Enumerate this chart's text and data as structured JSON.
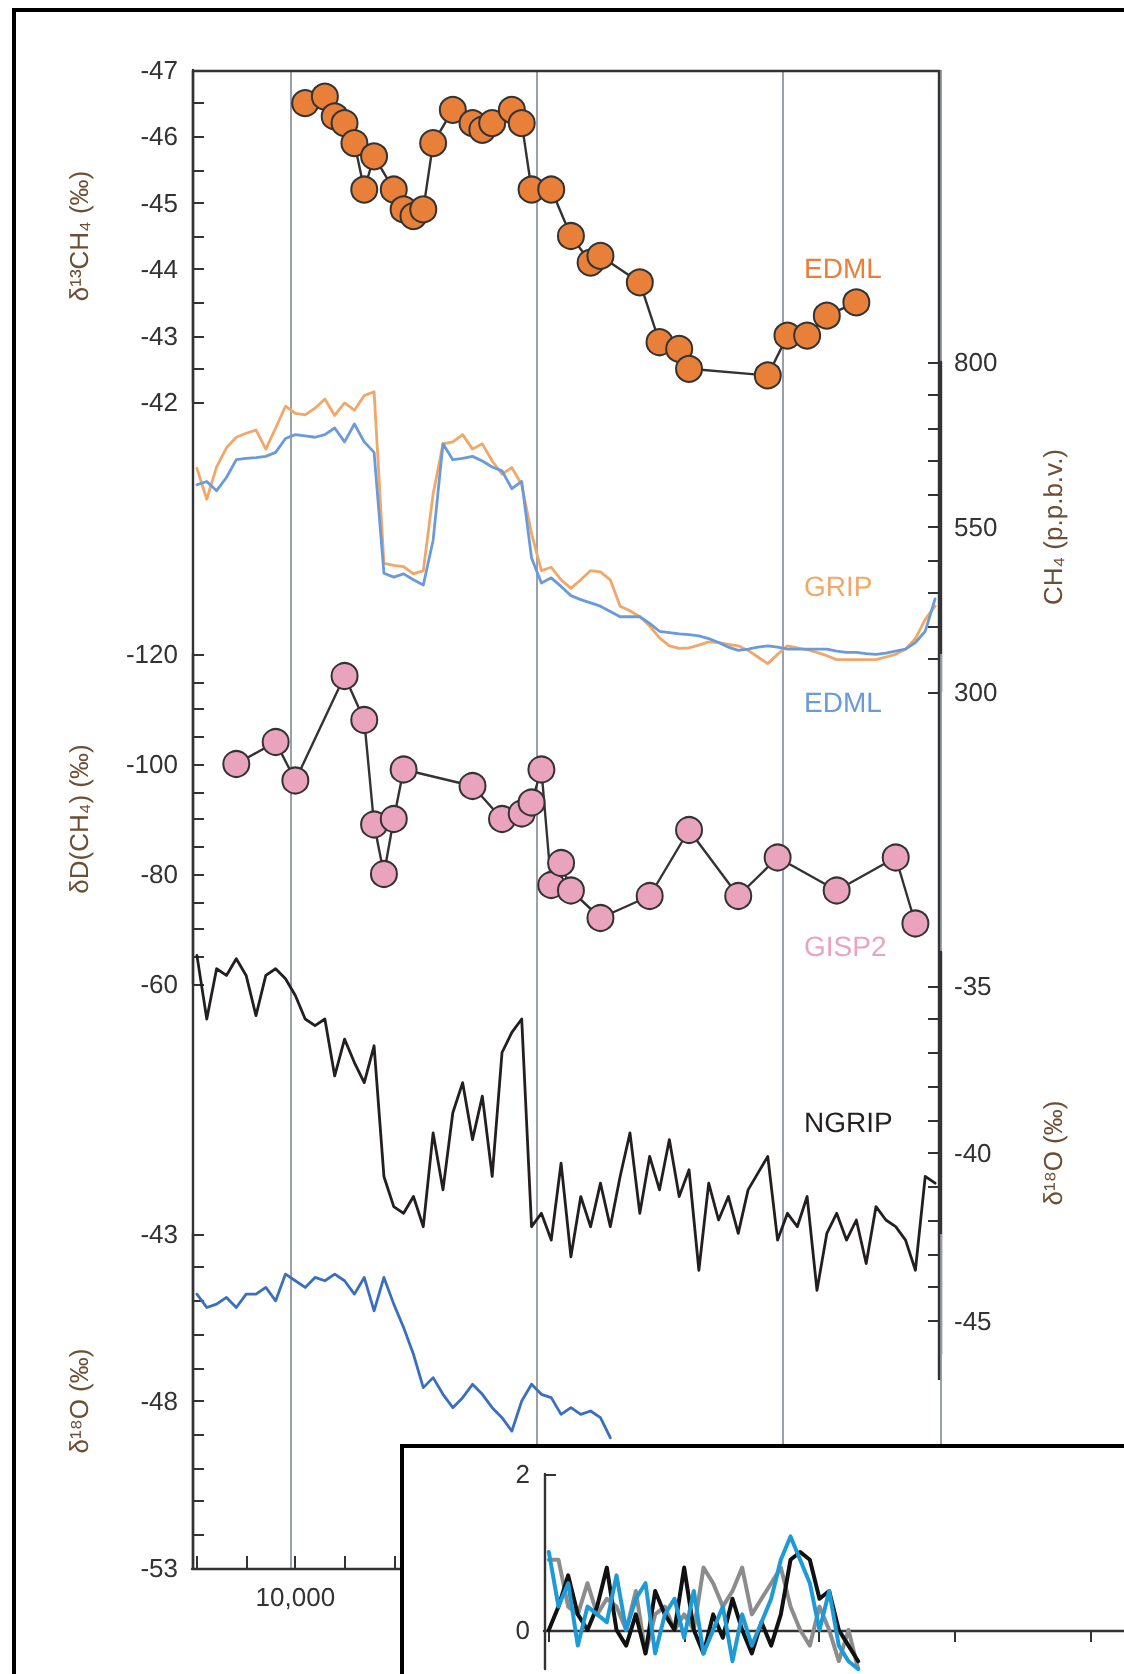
{
  "chart_data": [
    {
      "type": "line",
      "ylabel": "δ¹³CH₄ (‰)",
      "marker": "circle",
      "ylim": [
        -42,
        -47
      ],
      "tick_labels": "y",
      "grid": "x",
      "yticks": [
        -47,
        {
          "value": -46.5,
          "label": null
        },
        -46,
        {
          "value": -45.5,
          "label": null
        },
        -45,
        {
          "value": -44.5,
          "label": null
        },
        -44,
        {
          "value": -43.5,
          "label": null
        },
        -43,
        {
          "value": -42.5,
          "label": null
        },
        -42
      ],
      "categories": [
        null,
        null,
        null,
        null,
        null,
        null,
        null,
        null,
        null,
        null,
        null,
        null,
        null,
        null,
        null,
        null,
        null,
        null,
        null,
        null,
        null,
        null,
        null,
        null,
        null,
        null,
        null,
        null,
        null,
        null,
        null,
        null,
        null,
        null,
        null,
        null,
        null,
        null,
        null,
        null,
        null,
        null,
        null,
        null,
        null,
        null,
        null,
        null,
        null,
        null,
        null,
        null,
        null,
        null,
        null,
        null,
        null,
        null,
        null,
        null,
        null,
        null,
        null,
        null,
        null,
        null,
        null,
        null,
        null,
        null,
        null,
        null,
        null,
        null,
        null,
        null
      ],
      "series": [
        {
          "name": "EDML",
          "color": "#e8803a",
          "values": [
            null,
            null,
            null,
            null,
            null,
            null,
            null,
            null,
            null,
            null,
            null,
            -46.5,
            null,
            -46.6,
            -46.3,
            -46.2,
            -45.9,
            -45.2,
            -45.7,
            null,
            -45.2,
            -44.9,
            -44.8,
            -44.9,
            -45.9,
            null,
            -46.4,
            null,
            -46.2,
            -46.1,
            -46.2,
            null,
            -46.4,
            -46.2,
            -45.2,
            null,
            -45.2,
            null,
            -44.5,
            null,
            -44.1,
            -44.2,
            null,
            null,
            null,
            -43.8,
            null,
            -42.9,
            null,
            -42.8,
            -42.5,
            null,
            null,
            null,
            null,
            null,
            null,
            null,
            -42.4,
            null,
            -43.0,
            null,
            -43.0,
            null,
            -43.3,
            null,
            null,
            -43.5,
            null,
            null,
            null,
            null,
            null,
            null,
            null,
            null
          ]
        }
      ]
    },
    {
      "type": "line",
      "ylabel": "CH₄ (p.p.b.v.)",
      "ylim": [
        300,
        800
      ],
      "tick_labels": "y",
      "grid": "x",
      "yticks": [
        300,
        {
          "value": 350,
          "label": null
        },
        {
          "value": 400,
          "label": null
        },
        {
          "value": 450,
          "label": null
        },
        {
          "value": 500,
          "label": null
        },
        550,
        {
          "value": 600,
          "label": null
        },
        {
          "value": 650,
          "label": null
        },
        {
          "value": 700,
          "label": null
        },
        {
          "value": 750,
          "label": null
        },
        800
      ],
      "categories": [
        null,
        null,
        null,
        null,
        null,
        null,
        null,
        null,
        null,
        null,
        null,
        null,
        null,
        null,
        null,
        null,
        null,
        null,
        null,
        null,
        null,
        null,
        null,
        null,
        null,
        null,
        null,
        null,
        null,
        null,
        null,
        null,
        null,
        null,
        null,
        null,
        null,
        null,
        null,
        null,
        null,
        null,
        null,
        null,
        null,
        null,
        null,
        null,
        null,
        null,
        null,
        null,
        null,
        null,
        null,
        null,
        null,
        null,
        null,
        null,
        null,
        null,
        null,
        null,
        null,
        null,
        null,
        null,
        null,
        null,
        null,
        null,
        null,
        null,
        null,
        null
      ],
      "series": [
        {
          "name": "GRIP",
          "color": "#f0a868",
          "values": [
            639,
            592,
            641,
            670,
            686,
            692,
            697,
            668,
            700,
            733,
            722,
            720,
            730,
            744,
            719,
            738,
            727,
            749,
            755,
            495,
            492,
            490,
            479,
            484,
            600,
            676,
            679,
            690,
            668,
            676,
            650,
            630,
            640,
            614,
            540,
            484,
            489,
            470,
            457,
            470,
            484,
            482,
            470,
            430,
            423,
            414,
            400,
            382,
            370,
            366,
            367,
            371,
            376,
            375,
            372,
            370,
            363,
            353,
            343,
            357,
            370,
            367,
            364,
            360,
            355,
            349,
            349,
            349,
            349,
            349,
            353,
            357,
            365,
            381,
            410,
            430
          ]
        },
        {
          "name": "EDML",
          "color": "#6a9bd8",
          "values": [
            614,
            619,
            605,
            625,
            652,
            654,
            655,
            657,
            663,
            684,
            690,
            688,
            686,
            690,
            700,
            679,
            706,
            679,
            663,
            480,
            474,
            479,
            470,
            462,
            530,
            676,
            652,
            654,
            657,
            650,
            641,
            635,
            608,
            619,
            503,
            465,
            473,
            460,
            446,
            440,
            435,
            430,
            422,
            414,
            414,
            414,
            404,
            392,
            390,
            388,
            387,
            385,
            381,
            375,
            368,
            363,
            365,
            368,
            370,
            368,
            365,
            365,
            365,
            365,
            365,
            362,
            360,
            360,
            358,
            357,
            359,
            362,
            365,
            375,
            392,
            441
          ]
        }
      ]
    },
    {
      "type": "line",
      "ylabel": "δD(CH₄) (‰)",
      "marker": "circle",
      "ylim": [
        -60,
        -120
      ],
      "tick_labels": "y",
      "grid": "x",
      "yticks": [
        -120,
        {
          "value": -115,
          "label": null
        },
        {
          "value": -110,
          "label": null
        },
        {
          "value": -105,
          "label": null
        },
        -100,
        {
          "value": -95,
          "label": null
        },
        {
          "value": -90,
          "label": null
        },
        {
          "value": -85,
          "label": null
        },
        -80,
        {
          "value": -75,
          "label": null
        },
        {
          "value": -70,
          "label": null
        },
        {
          "value": -65,
          "label": null
        },
        -60
      ],
      "categories": [
        null,
        null,
        null,
        null,
        null,
        null,
        null,
        null,
        null,
        null,
        null,
        null,
        null,
        null,
        null,
        null,
        null,
        null,
        null,
        null,
        null,
        null,
        null,
        null,
        null,
        null,
        null,
        null,
        null,
        null,
        null,
        null,
        null,
        null,
        null,
        null,
        null,
        null,
        null,
        null,
        null,
        null,
        null,
        null,
        null,
        null,
        null,
        null,
        null,
        null,
        null,
        null,
        null,
        null,
        null,
        null,
        null,
        null,
        null,
        null,
        null,
        null,
        null,
        null,
        null,
        null,
        null,
        null,
        null,
        null,
        null,
        null,
        null,
        null,
        null,
        null
      ],
      "series": [
        {
          "name": "GISP2",
          "color": "#eaa3bd",
          "values": [
            null,
            null,
            null,
            null,
            -100,
            null,
            null,
            null,
            -104,
            null,
            -97,
            null,
            null,
            null,
            null,
            -116,
            null,
            -108,
            -89,
            -80,
            -90,
            -99,
            null,
            null,
            null,
            null,
            null,
            null,
            -96,
            null,
            null,
            -90,
            null,
            -91,
            -93,
            -99,
            -78,
            -82,
            -77,
            null,
            null,
            -72,
            null,
            null,
            null,
            null,
            -76,
            null,
            null,
            null,
            -88,
            null,
            null,
            null,
            null,
            -76,
            null,
            null,
            null,
            -83,
            null,
            null,
            null,
            null,
            null,
            -77,
            null,
            null,
            null,
            null,
            null,
            -83,
            null,
            -71,
            null,
            null
          ]
        }
      ]
    },
    {
      "type": "line",
      "ylabel": "δ¹⁸O (‰)",
      "ylim": [
        -46,
        -34
      ],
      "tick_labels": "y",
      "grid": "x",
      "yticks": [
        -35,
        {
          "value": -36,
          "label": null
        },
        {
          "value": -37,
          "label": null
        },
        {
          "value": -38,
          "label": null
        },
        {
          "value": -39,
          "label": null
        },
        -40,
        {
          "value": -41,
          "label": null
        },
        {
          "value": -42,
          "label": null
        },
        {
          "value": -43,
          "label": null
        },
        {
          "value": -44,
          "label": null
        },
        -45
      ],
      "categories": [
        null,
        null,
        null,
        null,
        null,
        null,
        null,
        null,
        null,
        null,
        null,
        null,
        null,
        null,
        null,
        null,
        null,
        null,
        null,
        null,
        null,
        null,
        null,
        null,
        null,
        null,
        null,
        null,
        null,
        null,
        null,
        null,
        null,
        null,
        null,
        null,
        null,
        null,
        null,
        null,
        null,
        null,
        null,
        null,
        null,
        null,
        null,
        null,
        null,
        null,
        null,
        null,
        null,
        null,
        null,
        null,
        null,
        null,
        null,
        null,
        null,
        null,
        null,
        null,
        null,
        null,
        null,
        null,
        null,
        null,
        null,
        null,
        null,
        null,
        null,
        null
      ],
      "series": [
        {
          "name": "NGRIP",
          "color": "#231f20",
          "values": [
            -34.1,
            -36.0,
            -34.5,
            -34.7,
            -34.2,
            -34.7,
            -35.9,
            -34.7,
            -34.5,
            -34.8,
            -35.3,
            -36.0,
            -36.2,
            -36.0,
            -37.7,
            -36.6,
            -37.3,
            -37.9,
            -36.8,
            -40.7,
            -41.6,
            -41.8,
            -41.3,
            -42.2,
            -39.4,
            -41.1,
            -38.8,
            -37.9,
            -39.6,
            -38.3,
            -40.7,
            -37.0,
            -36.4,
            -36.0,
            -42.2,
            -41.8,
            -42.6,
            -40.3,
            -43.1,
            -41.3,
            -42.2,
            -40.9,
            -42.2,
            -40.7,
            -39.4,
            -41.8,
            -40.1,
            -41.1,
            -39.6,
            -41.3,
            -40.5,
            -43.5,
            -40.9,
            -42.0,
            -41.3,
            -42.4,
            -41.1,
            -40.6,
            -40.1,
            -42.6,
            -41.8,
            -42.2,
            -41.3,
            -44.1,
            -42.4,
            -41.8,
            -42.6,
            -42.0,
            -43.3,
            -41.6,
            -42.0,
            -42.2,
            -42.6,
            -43.5,
            -40.7,
            -40.9
          ]
        }
      ]
    },
    {
      "type": "line",
      "ylabel": "δ¹⁸O (‰)",
      "ylim": [
        -53,
        -43
      ],
      "grid": "x",
      "yticks": [
        -53,
        {
          "value": -52,
          "label": null
        },
        {
          "value": -51,
          "label": null
        },
        {
          "value": -50,
          "label": null
        },
        {
          "value": -49,
          "label": null
        },
        -48,
        {
          "value": -47,
          "label": null
        },
        {
          "value": -46,
          "label": null
        },
        {
          "value": -45,
          "label": null
        },
        {
          "value": -44,
          "label": null
        },
        -43
      ],
      "categories": [
        null,
        null,
        null,
        null,
        null,
        null,
        null,
        null,
        null,
        null,
        "10,000",
        null,
        null,
        null,
        null,
        null,
        null,
        null,
        null,
        null,
        null,
        null,
        null,
        null,
        null,
        null,
        null,
        null,
        null,
        null,
        null,
        null,
        null,
        null,
        null,
        null,
        null,
        null,
        null,
        null,
        null,
        null,
        null,
        null,
        null,
        null,
        null,
        null,
        null,
        null,
        null,
        null,
        null,
        null,
        null,
        null,
        null,
        null,
        null,
        null,
        null,
        null,
        null,
        null,
        null,
        null,
        null,
        null,
        null,
        null,
        null,
        null,
        null,
        null,
        null,
        null
      ],
      "series": [
        {
          "color": "#3a6fbf",
          "values": [
            -44.8,
            -45.2,
            -45.1,
            -44.9,
            -45.2,
            -44.8,
            -44.8,
            -44.6,
            -45.0,
            -44.2,
            -44.4,
            -44.6,
            -44.3,
            -44.4,
            -44.2,
            -44.4,
            -44.8,
            -44.3,
            -45.3,
            -44.3,
            -45.1,
            -45.8,
            -46.6,
            -47.6,
            -47.3,
            -47.8,
            -48.2,
            -47.9,
            -47.5,
            -47.8,
            -48.2,
            -48.5,
            -48.9,
            -48.0,
            -47.5,
            -47.8,
            -47.9,
            -48.4,
            -48.2,
            -48.4,
            -48.3,
            -48.5,
            -49.1,
            null,
            null,
            null,
            null,
            null,
            null,
            null,
            null,
            null,
            null,
            null,
            null,
            null,
            null,
            null,
            null,
            null,
            null,
            null,
            null,
            null,
            null,
            null,
            null,
            null,
            null,
            null,
            null,
            null,
            null,
            null,
            null,
            null
          ]
        }
      ]
    },
    {
      "type": "line",
      "ylim": [
        -0.5,
        2
      ],
      "yticks": [
        0,
        2
      ],
      "tick_labels": "y",
      "categories": [
        null,
        null,
        null,
        null,
        null,
        null,
        null,
        null,
        null,
        null,
        null,
        null,
        null,
        null,
        null,
        null,
        null,
        null,
        null,
        null,
        null,
        null,
        null,
        null,
        null,
        null,
        null,
        null,
        null,
        null,
        null,
        null,
        null,
        null,
        null,
        null,
        null,
        null,
        null,
        null,
        null,
        null,
        null,
        null,
        null,
        null,
        null,
        null,
        null,
        null,
        null,
        null,
        null,
        null,
        null,
        null,
        null,
        null,
        null,
        null
      ],
      "series": [
        {
          "color": "#8c8c8c",
          "values": [
            0.9,
            0.9,
            0.3,
            0.2,
            0.6,
            0.2,
            0.4,
            0.3,
            0.0,
            0.5,
            -0.3,
            0.2,
            0.3,
            0.0,
            0.2,
            0.0,
            0.8,
            0.6,
            0.3,
            0.5,
            0.8,
            0.2,
            0.4,
            0.6,
            0.8,
            0.3,
            0.0,
            -0.2,
            0.3,
            0.0,
            -0.4,
            0.0,
            -0.5,
            null,
            null,
            null,
            null,
            null,
            null,
            null,
            null,
            null,
            null,
            null,
            null,
            null,
            null,
            null,
            null,
            null,
            null,
            null,
            null,
            null,
            null,
            null,
            null,
            null,
            null,
            null
          ]
        },
        {
          "color": "#111111",
          "values": [
            0.0,
            0.3,
            0.7,
            0.2,
            0.0,
            0.3,
            0.8,
            0.0,
            -0.2,
            0.2,
            -0.3,
            0.5,
            0.2,
            0.0,
            0.8,
            0.0,
            -0.3,
            0.2,
            -0.1,
            0.4,
            0.0,
            -0.3,
            0.1,
            -0.2,
            0.2,
            0.9,
            1.0,
            0.9,
            0.4,
            0.5,
            0.0,
            -0.2,
            -0.4,
            null,
            null,
            null,
            null,
            null,
            null,
            null,
            null,
            null,
            null,
            null,
            null,
            null,
            null,
            null,
            null,
            null,
            null,
            null,
            null,
            null,
            null,
            null,
            null,
            null,
            null,
            null
          ]
        },
        {
          "color": "#1e9ad6",
          "values": [
            1.0,
            0.3,
            0.6,
            -0.2,
            0.3,
            0.2,
            0.1,
            0.7,
            0.0,
            0.4,
            0.6,
            -0.3,
            0.2,
            0.4,
            -0.1,
            0.5,
            -0.3,
            0.0,
            0.3,
            -0.4,
            0.2,
            -0.2,
            0.1,
            0.4,
            0.9,
            1.2,
            0.9,
            0.6,
            0.0,
            0.5,
            -0.2,
            -0.4,
            -0.5,
            null,
            null,
            null,
            null,
            null,
            null,
            null,
            null,
            null,
            null,
            null,
            null,
            null,
            null,
            null,
            null,
            null,
            null,
            null,
            null,
            null,
            null,
            null,
            null,
            null,
            null,
            null
          ]
        }
      ]
    }
  ]
}
